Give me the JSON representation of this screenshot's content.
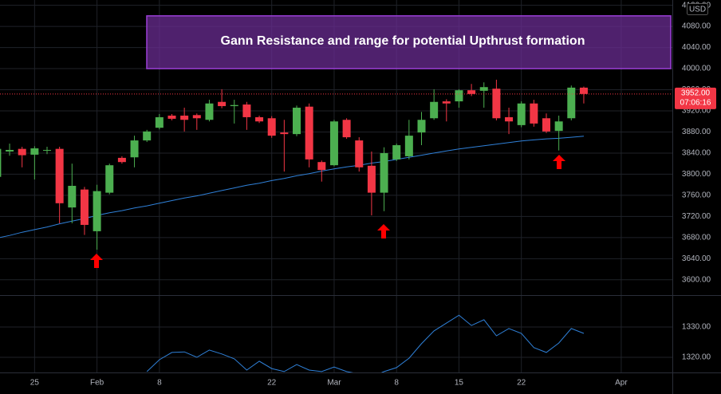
{
  "chart_data": [
    {
      "type": "candlestick",
      "annotation": {
        "text": "Gann Resistance and range for potential Upthrust formation",
        "range": [
          4000,
          4100
        ],
        "color": "#6a2c91"
      },
      "categories": [
        null,
        null,
        null,
        "25",
        null,
        null,
        null,
        null,
        "Feb",
        null,
        null,
        null,
        null,
        "8",
        null,
        null,
        null,
        null,
        null,
        null,
        null,
        null,
        "22",
        null,
        null,
        null,
        null,
        "Mar",
        null,
        null,
        null,
        null,
        "8",
        null,
        null,
        null,
        null,
        "15",
        null,
        null,
        null,
        null,
        "22",
        null,
        null,
        null,
        null,
        null,
        null,
        null,
        "Apr"
      ],
      "open": [
        3795,
        3843,
        3848,
        3837,
        3845,
        3848,
        3737,
        3771,
        3692,
        3765,
        3831,
        3832,
        3864,
        3888,
        3911,
        3911,
        3912,
        3903,
        3937,
        3929,
        3932,
        3908,
        3906,
        3879,
        3876,
        3928,
        3823,
        3817,
        3903,
        3864,
        3816,
        3765,
        3828,
        3834,
        3879,
        3906,
        3938,
        3938,
        3959,
        3958,
        3962,
        3908,
        3893,
        3934,
        3906,
        3882,
        3906,
        3964,
        null,
        null,
        null
      ],
      "high": [
        3850,
        3858,
        3852,
        3853,
        3852,
        3852,
        3820,
        3776,
        3780,
        3820,
        3834,
        3873,
        3884,
        3914,
        3914,
        3926,
        3915,
        3941,
        3961,
        3941,
        3937,
        3911,
        3910,
        3903,
        3930,
        3934,
        3826,
        3903,
        3906,
        3870,
        3843,
        3851,
        3858,
        3903,
        3918,
        3961,
        3942,
        3961,
        3971,
        3974,
        3979,
        3926,
        3938,
        3941,
        3915,
        3911,
        3968,
        3966,
        null,
        null,
        null
      ],
      "low": [
        3793,
        3835,
        3813,
        3790,
        3838,
        3707,
        3707,
        3685,
        3657,
        3762,
        3820,
        3813,
        3861,
        3885,
        3902,
        3881,
        3884,
        3900,
        3925,
        3896,
        3884,
        3897,
        3869,
        3805,
        3872,
        3813,
        3786,
        3815,
        3867,
        3805,
        3722,
        3730,
        3825,
        3828,
        3855,
        3903,
        3900,
        3926,
        3948,
        3926,
        3902,
        3876,
        3889,
        3890,
        3878,
        3845,
        3902,
        3934,
        null,
        null,
        null
      ],
      "close": [
        3848,
        3846,
        3836,
        3849,
        3846,
        3745,
        3778,
        3704,
        3768,
        3817,
        3823,
        3864,
        3881,
        3908,
        3905,
        3903,
        3906,
        3934,
        3929,
        3931,
        3908,
        3900,
        3873,
        3876,
        3926,
        3828,
        3808,
        3900,
        3870,
        3813,
        3765,
        3840,
        3855,
        3873,
        3903,
        3937,
        3934,
        3959,
        3952,
        3965,
        3906,
        3900,
        3934,
        3896,
        3881,
        3900,
        3964,
        3952,
        null,
        null,
        null
      ],
      "up_color": "#4caf50",
      "down_color": "#f23645",
      "ma_values": [
        3679,
        3684,
        3690,
        3695,
        3700,
        3706,
        3711,
        3716,
        3722,
        3727,
        3731,
        3736,
        3740,
        3745,
        3750,
        3755,
        3759,
        3764,
        3769,
        3774,
        3779,
        3783,
        3788,
        3792,
        3797,
        3801,
        3806,
        3810,
        3814,
        3817,
        3821,
        3824,
        3828,
        3832,
        3836,
        3840,
        3844,
        3848,
        3851,
        3854,
        3857,
        3860,
        3863,
        3865,
        3867,
        3868,
        3870,
        3872,
        null,
        null,
        null
      ],
      "ma_color": "#2f80d8",
      "ylim": [
        3571,
        4130
      ],
      "yticks": [
        {
          "value": 3600,
          "label": "3600.00"
        },
        {
          "value": 3640,
          "label": "3640.00"
        },
        {
          "value": 3680,
          "label": "3680.00"
        },
        {
          "value": 3720,
          "label": "3720.00"
        },
        {
          "value": 3760,
          "label": "3760.00"
        },
        {
          "value": 3800,
          "label": "3800.00"
        },
        {
          "value": 3840,
          "label": "3840.00"
        },
        {
          "value": 3880,
          "label": "3880.00"
        },
        {
          "value": 3920,
          "label": "3920.00"
        },
        {
          "value": 3960,
          "label": "3960.00"
        },
        {
          "value": 4000,
          "label": "4000.00"
        },
        {
          "value": 4040,
          "label": "4040.00"
        },
        {
          "value": 4080,
          "label": "4080.00"
        },
        {
          "value": 4120,
          "label": "4120.00"
        }
      ],
      "last_price": {
        "value": 3952,
        "label": "3952.00"
      },
      "countdown": "07:06:16",
      "currency": "USD",
      "grid": true
    },
    {
      "type": "line",
      "values": [
        null,
        null,
        null,
        null,
        null,
        null,
        null,
        null,
        null,
        null,
        null,
        null,
        1315.3,
        1319.2,
        1321.6,
        1321.8,
        1320,
        1322.4,
        1321.1,
        1319.5,
        1315.8,
        1318.7,
        1316.3,
        1315.3,
        1317.6,
        1315.8,
        1315.3,
        1316.8,
        1315.3,
        1314.5,
        1313.5,
        1315.3,
        1316.6,
        1319.7,
        1324.5,
        1328.7,
        1331.3,
        1333.9,
        1330.5,
        1332.4,
        1327.1,
        1329.5,
        1327.9,
        1323.2,
        1321.6,
        1324.7,
        1329.5,
        1327.9,
        null,
        null,
        null
      ],
      "color": "#2f80d8",
      "ylim": [
        1315,
        1340
      ],
      "yticks": [
        {
          "value": 1320,
          "label": "1320.00"
        },
        {
          "value": 1330,
          "label": "1330.00"
        }
      ],
      "grid": true
    }
  ]
}
